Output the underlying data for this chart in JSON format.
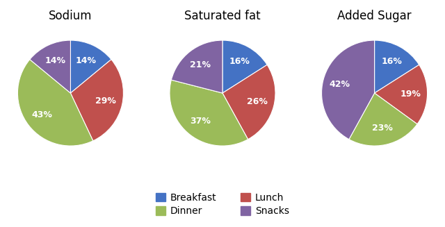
{
  "charts": [
    {
      "title": "Sodium",
      "values": [
        14,
        29,
        43,
        14
      ],
      "pct_labels": [
        "14%",
        "29%",
        "43%",
        "14%"
      ]
    },
    {
      "title": "Saturated fat",
      "values": [
        16,
        26,
        37,
        21
      ],
      "pct_labels": [
        "16%",
        "26%",
        "37%",
        "21%"
      ]
    },
    {
      "title": "Added Sugar",
      "values": [
        16,
        19,
        23,
        42
      ],
      "pct_labels": [
        "16%",
        "19%",
        "23%",
        "42%"
      ]
    }
  ],
  "slice_order": [
    "Breakfast",
    "Lunch",
    "Dinner",
    "Snacks"
  ],
  "colors": [
    "#4472C4",
    "#C0504D",
    "#9BBB59",
    "#8064A2"
  ],
  "legend_labels": [
    "Breakfast",
    "Lunch",
    "Dinner",
    "Snacks"
  ],
  "startangle": 90,
  "background_color": "#FFFFFF",
  "title_fontsize": 12,
  "label_fontsize": 9,
  "legend_fontsize": 10,
  "pctdistance": 0.68
}
